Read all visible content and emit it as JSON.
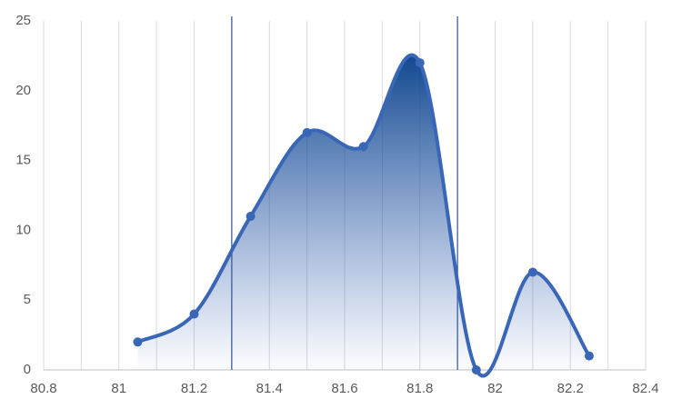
{
  "chart_data": {
    "type": "area-line",
    "x": [
      81.05,
      81.2,
      81.35,
      81.5,
      81.65,
      81.8,
      81.95,
      82.1,
      82.25
    ],
    "series": [
      {
        "color": "#3a66b8",
        "values": [
          2,
          4,
          11,
          17,
          16,
          22,
          0,
          7,
          1
        ]
      }
    ],
    "xlim": [
      80.8,
      82.4
    ],
    "xticks": [
      80.8,
      81,
      81.2,
      81.4,
      81.6,
      81.8,
      82,
      82.2,
      82.4
    ],
    "x_minor_grid": [
      80.9,
      81.1,
      81.3,
      81.5,
      81.7,
      81.9,
      82.1,
      82.3
    ],
    "ylim": [
      0,
      25
    ],
    "yticks": [
      0,
      5,
      10,
      15,
      20,
      25
    ],
    "vlines": [
      81.3,
      81.9
    ],
    "vline_color": "#2e5597",
    "grid": true
  }
}
